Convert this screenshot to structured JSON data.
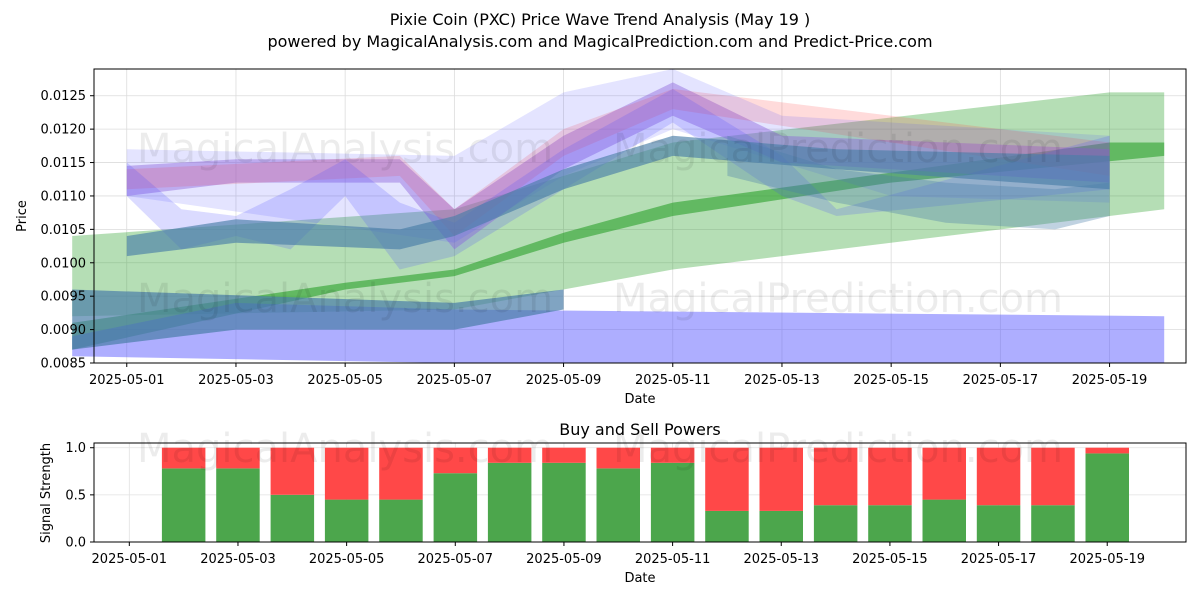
{
  "title_line1": "Pixie Coin (PXC) Price Wave Trend Analysis (May 19 )",
  "title_line2": "powered by MagicalAnalysis.com and MagicalPrediction.com and Predict-Price.com",
  "watermarks": [
    "MagicalAnalysis.com",
    "MagicalPrediction.com"
  ],
  "colors": {
    "green_band": "#2ca02c",
    "blue_band": "#4c4cff",
    "red_band": "#ff4d4d",
    "purple_band": "#9b6bd6",
    "steel_band": "#4a7ea8",
    "buy": "#4ca64c",
    "sell": "#ff4848"
  },
  "chart_data": [
    {
      "type": "line",
      "title": "",
      "xlabel": "Date",
      "ylabel": "Price",
      "x_ticks": [
        "2025-05-01",
        "2025-05-03",
        "2025-05-05",
        "2025-05-07",
        "2025-05-09",
        "2025-05-11",
        "2025-05-13",
        "2025-05-15",
        "2025-05-17",
        "2025-05-19"
      ],
      "y_ticks": [
        "0.0085",
        "0.0090",
        "0.0095",
        "0.0100",
        "0.0105",
        "0.0110",
        "0.0115",
        "0.0120",
        "0.0125"
      ],
      "xlim": [
        "2025-04-30",
        "2025-05-20"
      ],
      "ylim": [
        0.0085,
        0.0129
      ],
      "grid": true,
      "bands": [
        {
          "color": "green",
          "opacity": 0.35,
          "upper": [
            [
              "2025-04-30",
              0.0104
            ],
            [
              "2025-05-07",
              0.0108
            ],
            [
              "2025-05-11",
              0.0118
            ],
            [
              "2025-05-19",
              0.01255
            ],
            [
              "2025-05-20",
              0.01255
            ]
          ],
          "lower": [
            [
              "2025-04-30",
              0.0092
            ],
            [
              "2025-05-07",
              0.0093
            ],
            [
              "2025-05-11",
              0.0099
            ],
            [
              "2025-05-20",
              0.0108
            ]
          ]
        },
        {
          "color": "green",
          "opacity": 0.6,
          "upper": [
            [
              "2025-04-30",
              0.0091
            ],
            [
              "2025-05-05",
              0.0097
            ],
            [
              "2025-05-07",
              0.0099
            ],
            [
              "2025-05-09",
              0.01045
            ],
            [
              "2025-05-11",
              0.0109
            ],
            [
              "2025-05-15",
              0.01135
            ],
            [
              "2025-05-19",
              0.0118
            ],
            [
              "2025-05-20",
              0.0118
            ]
          ],
          "lower": [
            [
              "2025-04-30",
              0.0087
            ],
            [
              "2025-05-05",
              0.0096
            ],
            [
              "2025-05-07",
              0.0098
            ],
            [
              "2025-05-09",
              0.0103
            ],
            [
              "2025-05-11",
              0.0107
            ],
            [
              "2025-05-15",
              0.0112
            ],
            [
              "2025-05-20",
              0.0116
            ]
          ]
        },
        {
          "color": "blue",
          "opacity": 0.45,
          "upper": [
            [
              "2025-04-30",
              0.0089
            ],
            [
              "2025-05-03",
              0.0094
            ],
            [
              "2025-05-07",
              0.0093
            ],
            [
              "2025-05-20",
              0.0092
            ]
          ],
          "lower": [
            [
              "2025-04-30",
              0.0086
            ],
            [
              "2025-05-07",
              0.0085
            ],
            [
              "2025-05-20",
              0.0085
            ]
          ]
        },
        {
          "color": "steel",
          "opacity": 0.7,
          "upper": [
            [
              "2025-04-30",
              0.0096
            ],
            [
              "2025-05-07",
              0.0094
            ],
            [
              "2025-05-09",
              0.0096
            ]
          ],
          "lower": [
            [
              "2025-04-30",
              0.0087
            ],
            [
              "2025-05-03",
              0.009
            ],
            [
              "2025-05-07",
              0.009
            ],
            [
              "2025-05-09",
              0.0093
            ]
          ]
        },
        {
          "color": "purple",
          "opacity": 0.45,
          "upper": [
            [
              "2025-05-01",
              0.01145
            ],
            [
              "2025-05-03",
              0.01155
            ],
            [
              "2025-05-06",
              0.01155
            ],
            [
              "2025-05-07",
              0.0108
            ],
            [
              "2025-05-09",
              0.0119
            ],
            [
              "2025-05-11",
              0.0127
            ],
            [
              "2025-05-13",
              0.0119
            ],
            [
              "2025-05-19",
              0.0117
            ]
          ],
          "lower": [
            [
              "2025-05-01",
              0.011
            ],
            [
              "2025-05-03",
              0.0112
            ],
            [
              "2025-05-06",
              0.0112
            ],
            [
              "2025-05-07",
              0.0102
            ],
            [
              "2025-05-09",
              0.0114
            ],
            [
              "2025-05-11",
              0.0122
            ],
            [
              "2025-05-13",
              0.0115
            ],
            [
              "2025-05-19",
              0.0112
            ]
          ]
        },
        {
          "color": "red",
          "opacity": 0.2,
          "upper": [
            [
              "2025-05-01",
              0.0114
            ],
            [
              "2025-05-06",
              0.0116
            ],
            [
              "2025-05-07",
              0.0108
            ],
            [
              "2025-05-09",
              0.012
            ],
            [
              "2025-05-11",
              0.0126
            ],
            [
              "2025-05-19",
              0.0118
            ]
          ],
          "lower": [
            [
              "2025-05-01",
              0.0111
            ],
            [
              "2025-05-06",
              0.0113
            ],
            [
              "2025-05-07",
              0.0104
            ],
            [
              "2025-05-09",
              0.0116
            ],
            [
              "2025-05-11",
              0.0123
            ],
            [
              "2025-05-19",
              0.0113
            ]
          ]
        },
        {
          "color": "blue",
          "opacity": 0.15,
          "upper": [
            [
              "2025-05-01",
              0.0117
            ],
            [
              "2025-05-07",
              0.0116
            ],
            [
              "2025-05-09",
              0.01255
            ],
            [
              "2025-05-11",
              0.0129
            ],
            [
              "2025-05-13",
              0.0122
            ],
            [
              "2025-05-19",
              0.0119
            ]
          ],
          "lower": [
            [
              "2025-05-01",
              0.011
            ],
            [
              "2025-05-07",
              0.0103
            ],
            [
              "2025-05-09",
              0.0113
            ],
            [
              "2025-05-11",
              0.012
            ],
            [
              "2025-05-15",
              0.011
            ],
            [
              "2025-05-19",
              0.0109
            ]
          ]
        },
        {
          "color": "blue",
          "opacity": 0.2,
          "upper": [
            [
              "2025-05-01",
              0.0115
            ],
            [
              "2025-05-02",
              0.0108
            ],
            [
              "2025-05-03",
              0.0107
            ],
            [
              "2025-05-04",
              0.0111
            ],
            [
              "2025-05-05",
              0.01155
            ],
            [
              "2025-05-06",
              0.0109
            ],
            [
              "2025-05-07",
              0.0106
            ],
            [
              "2025-05-09",
              0.0117
            ],
            [
              "2025-05-11",
              0.0126
            ],
            [
              "2025-05-13",
              0.0116
            ],
            [
              "2025-05-14",
              0.0108
            ],
            [
              "2025-05-19",
              0.0119
            ]
          ],
          "lower": [
            [
              "2025-05-01",
              0.011
            ],
            [
              "2025-05-02",
              0.0102
            ],
            [
              "2025-05-03",
              0.0104
            ],
            [
              "2025-05-04",
              0.0102
            ],
            [
              "2025-05-05",
              0.011
            ],
            [
              "2025-05-06",
              0.0099
            ],
            [
              "2025-05-07",
              0.0101
            ],
            [
              "2025-05-09",
              0.0111
            ],
            [
              "2025-05-11",
              0.0121
            ],
            [
              "2025-05-13",
              0.011
            ],
            [
              "2025-05-14",
              0.0107
            ],
            [
              "2025-05-19",
              0.0111
            ]
          ]
        },
        {
          "color": "steel",
          "opacity": 0.65,
          "upper": [
            [
              "2025-05-01",
              0.0104
            ],
            [
              "2025-05-03",
              0.01065
            ],
            [
              "2025-05-06",
              0.0105
            ],
            [
              "2025-05-07",
              0.0107
            ],
            [
              "2025-05-09",
              0.0114
            ],
            [
              "2025-05-11",
              0.0119
            ],
            [
              "2025-05-14",
              0.0117
            ],
            [
              "2025-05-19",
              0.0116
            ]
          ],
          "lower": [
            [
              "2025-05-01",
              0.0101
            ],
            [
              "2025-05-03",
              0.0103
            ],
            [
              "2025-05-06",
              0.0102
            ],
            [
              "2025-05-07",
              0.0104
            ],
            [
              "2025-05-09",
              0.0111
            ],
            [
              "2025-05-11",
              0.0116
            ],
            [
              "2025-05-14",
              0.0114
            ],
            [
              "2025-05-19",
              0.0111
            ]
          ]
        },
        {
          "color": "steel",
          "opacity": 0.35,
          "upper": [
            [
              "2025-05-12",
              0.0119
            ],
            [
              "2025-05-14",
              0.0114
            ],
            [
              "2025-05-16",
              0.0112
            ],
            [
              "2025-05-18",
              0.0111
            ],
            [
              "2025-05-19",
              0.0112
            ]
          ],
          "lower": [
            [
              "2025-05-12",
              0.0113
            ],
            [
              "2025-05-14",
              0.0109
            ],
            [
              "2025-05-16",
              0.0106
            ],
            [
              "2025-05-18",
              0.0105
            ],
            [
              "2025-05-19",
              0.0107
            ]
          ]
        }
      ]
    },
    {
      "type": "bar",
      "title": "Buy and Sell Powers",
      "xlabel": "Date",
      "ylabel": "Signal Strength",
      "x_ticks": [
        "2025-05-01",
        "2025-05-03",
        "2025-05-05",
        "2025-05-07",
        "2025-05-09",
        "2025-05-11",
        "2025-05-13",
        "2025-05-15",
        "2025-05-17",
        "2025-05-19"
      ],
      "y_ticks": [
        "0.0",
        "0.5",
        "1.0"
      ],
      "ylim": [
        0,
        1.05
      ],
      "categories": [
        "2025-05-02",
        "2025-05-03",
        "2025-05-04",
        "2025-05-05",
        "2025-05-06",
        "2025-05-07",
        "2025-05-08",
        "2025-05-09",
        "2025-05-10",
        "2025-05-11",
        "2025-05-12",
        "2025-05-13",
        "2025-05-14",
        "2025-05-15",
        "2025-05-16",
        "2025-05-17",
        "2025-05-18",
        "2025-05-19"
      ],
      "series": [
        {
          "values": [
            0.78,
            0.78,
            0.5,
            0.45,
            0.45,
            0.73,
            0.84,
            0.84,
            0.78,
            0.84,
            0.33,
            0.33,
            0.39,
            0.39,
            0.45,
            0.39,
            0.39,
            0.94
          ]
        },
        {
          "values": [
            0.22,
            0.22,
            0.5,
            0.55,
            0.55,
            0.27,
            0.16,
            0.16,
            0.22,
            0.16,
            0.67,
            0.67,
            0.61,
            0.61,
            0.55,
            0.61,
            0.61,
            0.06
          ]
        }
      ]
    }
  ]
}
